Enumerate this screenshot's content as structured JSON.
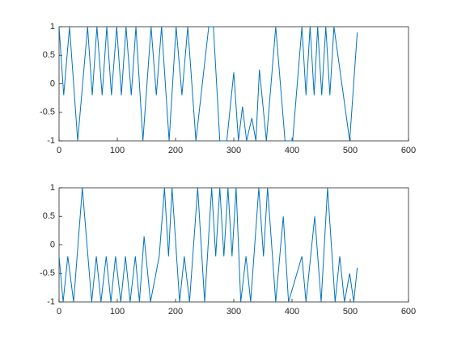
{
  "chart_data": [
    {
      "type": "line",
      "x": [
        0,
        8,
        18,
        32,
        49,
        57,
        65,
        74,
        82,
        90,
        99,
        107,
        115,
        124,
        132,
        144,
        158,
        167,
        176,
        189,
        201,
        211,
        221,
        235,
        257,
        265,
        276,
        288,
        300,
        308,
        315,
        322,
        331,
        338,
        344,
        356,
        372,
        388,
        401,
        417,
        424,
        431,
        438,
        444,
        451,
        458,
        465,
        472,
        499,
        512
      ],
      "series": [
        {
          "color": "#0072bd",
          "values": [
            1,
            -0.2,
            1,
            -1,
            1,
            -0.2,
            1,
            -0.2,
            1,
            -0.2,
            1,
            -0.2,
            1,
            -0.2,
            1,
            -1,
            1,
            -0.2,
            1,
            -1,
            1,
            -0.2,
            1,
            -1,
            1,
            1,
            -1,
            -1,
            0.2,
            -1,
            -0.4,
            -1,
            -0.6,
            -1,
            0.25,
            -1,
            1,
            -1,
            -1,
            1,
            -0.2,
            1,
            -0.2,
            1,
            -0.2,
            1,
            -0.2,
            1,
            -1,
            0.9
          ]
        }
      ],
      "xlim": [
        0,
        600
      ],
      "ylim": [
        -1,
        1
      ],
      "xticks": [
        0,
        100,
        200,
        300,
        400,
        500,
        600
      ],
      "yticks": [
        -1,
        -0.5,
        0,
        0.5,
        1
      ]
    },
    {
      "type": "line",
      "x": [
        0,
        7,
        15,
        25,
        40,
        56,
        64,
        72,
        81,
        89,
        97,
        106,
        114,
        122,
        131,
        138,
        146,
        157,
        172,
        181,
        188,
        194,
        207,
        215,
        224,
        238,
        250,
        262,
        269,
        276,
        283,
        290,
        297,
        304,
        312,
        321,
        329,
        343,
        351,
        358,
        372,
        385,
        394,
        417,
        424,
        439,
        450,
        461,
        474,
        482,
        490,
        499,
        506,
        512
      ],
      "series": [
        {
          "color": "#0072bd",
          "values": [
            -0.2,
            -1,
            -0.2,
            -1,
            1,
            -1,
            -0.2,
            -1,
            -0.2,
            -1,
            -0.2,
            -1,
            -0.2,
            -1,
            -0.2,
            -1,
            0.15,
            -1,
            -0.2,
            1,
            -0.2,
            1,
            -1,
            -0.2,
            -1,
            1,
            -1,
            1,
            -0.2,
            1,
            -0.2,
            1,
            -0.2,
            1,
            -1,
            -0.2,
            -1,
            1,
            -0.2,
            1,
            -1,
            0.5,
            -1,
            -0.2,
            -1,
            0.5,
            -1,
            1,
            -1,
            -0.2,
            -1,
            -0.5,
            -1,
            -0.4
          ]
        }
      ],
      "xlim": [
        0,
        600
      ],
      "ylim": [
        -1,
        1
      ],
      "xticks": [
        0,
        100,
        200,
        300,
        400,
        500,
        600
      ],
      "yticks": [
        -1,
        -0.5,
        0,
        0.5,
        1
      ]
    }
  ]
}
